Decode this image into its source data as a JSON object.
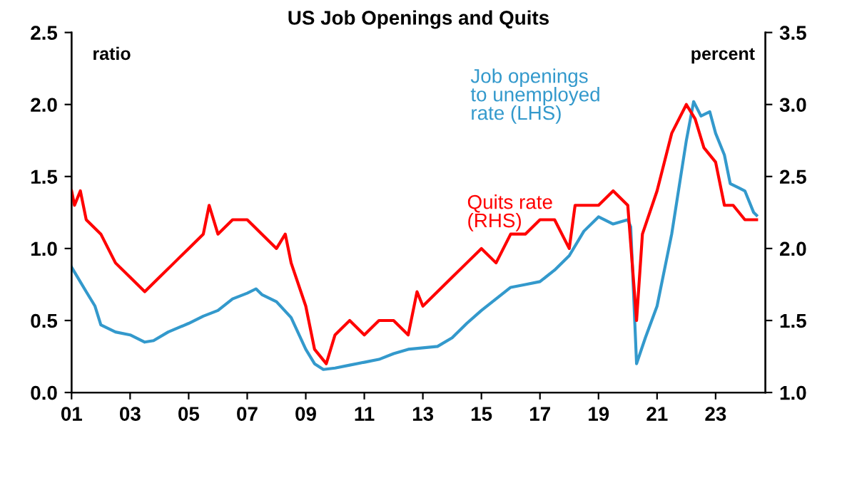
{
  "chart_data": {
    "type": "line",
    "title": "US Job Openings and Quits",
    "ylabel": "ratio",
    "y2label": "percent",
    "xlim": [
      2001,
      2024.7
    ],
    "xticks": [
      {
        "value": 2001,
        "label": "01"
      },
      {
        "value": 2003,
        "label": "03"
      },
      {
        "value": 2005,
        "label": "05"
      },
      {
        "value": 2007,
        "label": "07"
      },
      {
        "value": 2009,
        "label": "09"
      },
      {
        "value": 2011,
        "label": "11"
      },
      {
        "value": 2013,
        "label": "13"
      },
      {
        "value": 2015,
        "label": "15"
      },
      {
        "value": 2017,
        "label": "17"
      },
      {
        "value": 2019,
        "label": "19"
      },
      {
        "value": 2021,
        "label": "21"
      },
      {
        "value": 2023,
        "label": "23"
      }
    ],
    "ylim": [
      0,
      2.5
    ],
    "yticks": [
      {
        "value": 0,
        "label": "0.0"
      },
      {
        "value": 0.5,
        "label": "0.5"
      },
      {
        "value": 1,
        "label": "1.0"
      },
      {
        "value": 1.5,
        "label": "1.5"
      },
      {
        "value": 2,
        "label": "2.0"
      },
      {
        "value": 2.5,
        "label": "2.5"
      }
    ],
    "y2lim": [
      1,
      3.5
    ],
    "y2ticks": [
      {
        "value": 1,
        "label": "1.0"
      },
      {
        "value": 1.5,
        "label": "1.5"
      },
      {
        "value": 2,
        "label": "2.0"
      },
      {
        "value": 2.5,
        "label": "2.5"
      },
      {
        "value": 3,
        "label": "3.0"
      },
      {
        "value": 3.5,
        "label": "3.5"
      }
    ],
    "grid": false,
    "legend": false,
    "series": [
      {
        "name": "Job openings\nto unemployed\nrate (LHS)",
        "color": "#3399cc",
        "axis": "y",
        "x": [
          2001.0,
          2001.5,
          2001.8,
          2002.0,
          2002.5,
          2003.0,
          2003.5,
          2003.8,
          2004.3,
          2005.0,
          2005.5,
          2006.0,
          2006.5,
          2007.0,
          2007.3,
          2007.5,
          2008.0,
          2008.5,
          2009.0,
          2009.3,
          2009.6,
          2010.0,
          2010.5,
          2011.0,
          2011.5,
          2012.0,
          2012.5,
          2013.0,
          2013.5,
          2014.0,
          2014.5,
          2015.0,
          2015.5,
          2016.0,
          2016.5,
          2017.0,
          2017.5,
          2018.0,
          2018.5,
          2019.0,
          2019.5,
          2020.0,
          2020.1,
          2020.3,
          2020.6,
          2021.0,
          2021.5,
          2022.0,
          2022.25,
          2022.5,
          2022.8,
          2023.0,
          2023.3,
          2023.5,
          2023.8,
          2024.0,
          2024.3,
          2024.4
        ],
        "values": [
          0.87,
          0.7,
          0.6,
          0.47,
          0.42,
          0.4,
          0.35,
          0.36,
          0.42,
          0.48,
          0.53,
          0.57,
          0.65,
          0.69,
          0.72,
          0.68,
          0.63,
          0.52,
          0.3,
          0.2,
          0.16,
          0.17,
          0.19,
          0.21,
          0.23,
          0.27,
          0.3,
          0.31,
          0.32,
          0.38,
          0.48,
          0.57,
          0.65,
          0.73,
          0.75,
          0.77,
          0.85,
          0.95,
          1.12,
          1.22,
          1.17,
          1.2,
          1.15,
          0.2,
          0.38,
          0.6,
          1.1,
          1.75,
          2.02,
          1.92,
          1.95,
          1.8,
          1.65,
          1.45,
          1.42,
          1.4,
          1.25,
          1.23
        ]
      },
      {
        "name": "Quits rate\n(RHS)",
        "color": "#ff0000",
        "axis": "y2",
        "x": [
          2001.0,
          2001.1,
          2001.3,
          2001.5,
          2002.0,
          2002.5,
          2003.0,
          2003.5,
          2004.0,
          2004.5,
          2005.0,
          2005.5,
          2005.7,
          2006.0,
          2006.5,
          2007.0,
          2007.5,
          2008.0,
          2008.3,
          2008.5,
          2009.0,
          2009.3,
          2009.7,
          2010.0,
          2010.5,
          2011.0,
          2011.5,
          2012.0,
          2012.5,
          2012.8,
          2013.0,
          2013.5,
          2014.0,
          2014.5,
          2015.0,
          2015.5,
          2016.0,
          2016.5,
          2017.0,
          2017.5,
          2018.0,
          2018.2,
          2019.0,
          2019.5,
          2020.0,
          2020.3,
          2020.5,
          2021.0,
          2021.5,
          2022.0,
          2022.3,
          2022.6,
          2023.0,
          2023.3,
          2023.6,
          2024.0,
          2024.4
        ],
        "values": [
          2.4,
          2.3,
          2.4,
          2.2,
          2.1,
          1.9,
          1.8,
          1.7,
          1.8,
          1.9,
          2.0,
          2.1,
          2.3,
          2.1,
          2.2,
          2.2,
          2.1,
          2.0,
          2.1,
          1.9,
          1.6,
          1.3,
          1.2,
          1.4,
          1.5,
          1.4,
          1.5,
          1.5,
          1.4,
          1.7,
          1.6,
          1.7,
          1.8,
          1.9,
          2.0,
          1.9,
          2.1,
          2.1,
          2.2,
          2.2,
          2.0,
          2.3,
          2.3,
          2.4,
          2.3,
          1.5,
          2.1,
          2.4,
          2.8,
          3.0,
          2.9,
          2.7,
          2.6,
          2.3,
          2.3,
          2.2,
          2.2
        ]
      }
    ]
  }
}
